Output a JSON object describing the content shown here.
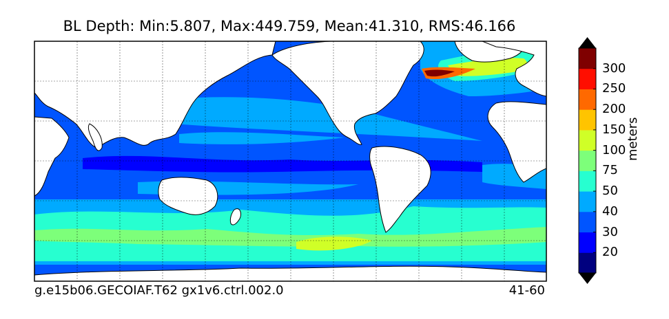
{
  "title": "BL Depth: Min:5.807, Max:449.759, Mean:41.310, RMS:46.166",
  "footer": {
    "case_name": "g.e15b06.GECOIAF.T62 gx1v6.ctrl.002.0",
    "years": "41-60"
  },
  "colorbar": {
    "units": "meters",
    "levels": [
      "20",
      "30",
      "40",
      "50",
      "75",
      "100",
      "150",
      "200",
      "250",
      "300"
    ],
    "colors": [
      "#00007f",
      "#0000ff",
      "#0055ff",
      "#00aaff",
      "#27ffd0",
      "#7dff7a",
      "#d0ff27",
      "#ffc400",
      "#ff6900",
      "#ff0e00",
      "#7f0000"
    ],
    "extend": "both"
  },
  "map": {
    "land_color": "#ffffff",
    "grid": true,
    "projection": "cylindrical, 20°E-380°E"
  }
}
